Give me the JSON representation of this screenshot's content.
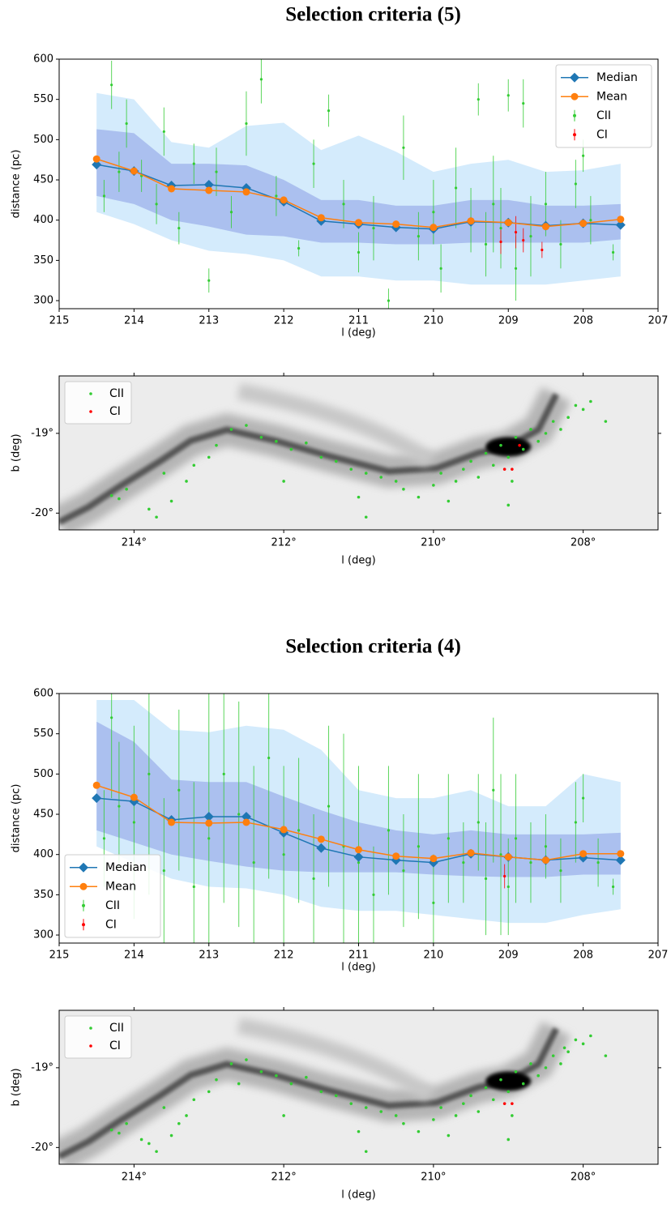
{
  "chart_data": [
    {
      "type": "line",
      "title": "Selection criteria (5)",
      "xlabel": "l (deg)",
      "ylabel": "distance (pc)",
      "xlim": [
        215,
        207
      ],
      "ylim": [
        290,
        600
      ],
      "xticks": [
        215,
        214,
        213,
        212,
        211,
        210,
        209,
        208,
        207
      ],
      "yticks": [
        300,
        350,
        400,
        450,
        500,
        550,
        600
      ],
      "legend": "upper right",
      "x": [
        214.5,
        214,
        213.5,
        213,
        212.5,
        212,
        211.5,
        211,
        210.5,
        210,
        209.5,
        209,
        208.5,
        208,
        207.5
      ],
      "bands": [
        {
          "color": "#cde8fb",
          "upper": [
            558,
            550,
            497,
            490,
            517,
            521,
            487,
            505,
            485,
            460,
            470,
            475,
            460,
            462,
            470
          ],
          "lower": [
            410,
            395,
            375,
            362,
            358,
            350,
            330,
            330,
            325,
            325,
            320,
            320,
            320,
            325,
            330
          ]
        },
        {
          "color": "#a3b8ec",
          "upper": [
            513,
            508,
            470,
            470,
            468,
            450,
            425,
            425,
            418,
            418,
            425,
            425,
            418,
            418,
            420
          ],
          "lower": [
            430,
            420,
            400,
            392,
            382,
            380,
            372,
            372,
            370,
            370,
            372,
            372,
            372,
            372,
            376
          ]
        }
      ],
      "series": [
        {
          "name": "Median",
          "color": "#1f77b4",
          "marker": "diamond",
          "values": [
            469,
            461,
            443,
            444,
            440,
            423,
            399,
            395,
            391,
            389,
            398,
            397,
            393,
            396,
            394
          ]
        },
        {
          "name": "Mean",
          "color": "#ff7f0e",
          "marker": "circle",
          "values": [
            476,
            461,
            439,
            437,
            435,
            425,
            403,
            397,
            395,
            391,
            399,
            397,
            392,
            396,
            401
          ]
        }
      ],
      "points": [
        {
          "name": "CII",
          "color": "#33cc33",
          "x": [
            214.4,
            214.3,
            214.2,
            214.1,
            213.9,
            213.7,
            213.6,
            213.4,
            213.2,
            213.0,
            212.9,
            212.7,
            212.5,
            212.3,
            212.1,
            211.8,
            211.6,
            211.4,
            211.2,
            211.0,
            210.8,
            210.6,
            210.4,
            210.2,
            210.0,
            209.9,
            209.7,
            209.5,
            209.4,
            209.3,
            209.2,
            209.1,
            209.0,
            208.9,
            208.8,
            208.7,
            208.5,
            208.3,
            208.1,
            208.0,
            207.9,
            207.6
          ],
          "values": [
            430,
            568,
            460,
            520,
            455,
            420,
            510,
            390,
            470,
            325,
            460,
            410,
            520,
            575,
            430,
            365,
            470,
            536,
            420,
            360,
            390,
            300,
            490,
            380,
            410,
            340,
            440,
            400,
            550,
            370,
            420,
            390,
            555,
            340,
            545,
            380,
            420,
            370,
            445,
            480,
            400,
            360
          ],
          "errors": [
            20,
            30,
            25,
            30,
            20,
            25,
            30,
            20,
            25,
            15,
            30,
            20,
            40,
            30,
            25,
            10,
            30,
            20,
            30,
            25,
            40,
            15,
            40,
            30,
            40,
            30,
            50,
            40,
            20,
            40,
            60,
            50,
            20,
            40,
            30,
            50,
            40,
            30,
            30,
            20,
            30,
            10
          ]
        },
        {
          "name": "CI",
          "color": "#ff0000",
          "x": [
            209.1,
            208.9,
            208.8,
            208.55
          ],
          "values": [
            373,
            385,
            375,
            363
          ],
          "errors": [
            15,
            20,
            15,
            10
          ]
        }
      ]
    },
    {
      "type": "scatter",
      "xlabel": "l (deg)",
      "ylabel": "b (deg)",
      "xlim": [
        215,
        207
      ],
      "ylim": [
        -20.21,
        -18.28
      ],
      "xticks": [
        {
          "value": 214,
          "label": "214°"
        },
        {
          "value": 212,
          "label": "212°"
        },
        {
          "value": 210,
          "label": "210°"
        },
        {
          "value": 208,
          "label": "208°"
        }
      ],
      "yticks": [
        {
          "value": -20,
          "label": "-20°"
        },
        {
          "value": -19,
          "label": "-19°"
        }
      ],
      "legend": "upper left",
      "series": [
        {
          "name": "CII",
          "color": "#33cc33",
          "x": [
            214.3,
            214.2,
            214.1,
            213.8,
            213.6,
            213.5,
            213.3,
            213.2,
            213.0,
            212.9,
            212.7,
            212.5,
            212.3,
            212.1,
            211.9,
            211.7,
            211.5,
            211.3,
            211.1,
            210.9,
            210.7,
            210.5,
            210.4,
            210.2,
            210.0,
            209.9,
            209.8,
            209.7,
            209.6,
            209.5,
            209.4,
            209.3,
            209.2,
            209.1,
            209.0,
            208.95,
            208.9,
            208.8,
            208.7,
            208.6,
            208.5,
            208.4,
            208.3,
            208.2,
            208.1,
            208.0,
            207.9,
            207.7,
            209.0,
            210.9,
            213.7,
            212.0,
            211.0
          ],
          "values": [
            -19.78,
            -19.82,
            -19.7,
            -19.95,
            -19.5,
            -19.85,
            -19.6,
            -19.4,
            -19.3,
            -19.15,
            -18.95,
            -18.9,
            -19.05,
            -19.1,
            -19.2,
            -19.12,
            -19.3,
            -19.35,
            -19.45,
            -19.5,
            -19.55,
            -19.6,
            -19.7,
            -19.8,
            -19.65,
            -19.5,
            -19.85,
            -19.6,
            -19.45,
            -19.35,
            -19.55,
            -19.25,
            -19.4,
            -19.15,
            -19.3,
            -19.6,
            -19.05,
            -19.2,
            -18.95,
            -19.1,
            -19.0,
            -18.85,
            -18.95,
            -18.8,
            -18.65,
            -18.7,
            -18.6,
            -18.85,
            -19.9,
            -20.05,
            -20.05,
            -19.6,
            -19.8
          ]
        },
        {
          "name": "CI",
          "color": "#ff0000",
          "x": [
            209.05,
            208.95,
            208.85
          ],
          "values": [
            -19.45,
            -19.45,
            -19.15
          ]
        }
      ]
    },
    {
      "type": "line",
      "title": "Selection criteria (4)",
      "xlabel": "l (deg)",
      "ylabel": "distance (pc)",
      "xlim": [
        215,
        207
      ],
      "ylim": [
        290,
        600
      ],
      "xticks": [
        215,
        214,
        213,
        212,
        211,
        210,
        209,
        208,
        207
      ],
      "yticks": [
        300,
        350,
        400,
        450,
        500,
        550,
        600
      ],
      "legend": "lower left",
      "x": [
        214.5,
        214,
        213.5,
        213,
        212.5,
        212,
        211.5,
        211,
        210.5,
        210,
        209.5,
        209,
        208.5,
        208,
        207.5
      ],
      "bands": [
        {
          "color": "#cde8fb",
          "upper": [
            592,
            592,
            555,
            552,
            560,
            555,
            530,
            480,
            470,
            470,
            480,
            460,
            460,
            500,
            490
          ],
          "lower": [
            410,
            390,
            370,
            360,
            358,
            350,
            335,
            330,
            330,
            325,
            320,
            315,
            315,
            325,
            332
          ]
        },
        {
          "color": "#a3b8ec",
          "upper": [
            565,
            540,
            493,
            490,
            490,
            472,
            455,
            440,
            430,
            425,
            430,
            425,
            425,
            425,
            427
          ],
          "lower": [
            430,
            415,
            400,
            392,
            385,
            380,
            378,
            378,
            378,
            375,
            373,
            372,
            372,
            375,
            375
          ]
        }
      ],
      "series": [
        {
          "name": "Median",
          "color": "#1f77b4",
          "marker": "diamond",
          "values": [
            470,
            466,
            443,
            447,
            447,
            427,
            408,
            397,
            393,
            390,
            401,
            397,
            393,
            396,
            393
          ]
        },
        {
          "name": "Mean",
          "color": "#ff7f0e",
          "marker": "circle",
          "values": [
            486,
            471,
            440,
            439,
            440,
            431,
            419,
            406,
            398,
            395,
            402,
            397,
            393,
            401,
            401
          ]
        }
      ],
      "points": [
        {
          "name": "CII",
          "color": "#33cc33",
          "x": [
            214.4,
            214.3,
            214.2,
            214.0,
            213.8,
            213.6,
            213.4,
            213.2,
            213.0,
            212.8,
            212.6,
            212.4,
            212.2,
            212.0,
            211.8,
            211.6,
            211.4,
            211.2,
            211.0,
            210.8,
            210.6,
            210.4,
            210.2,
            210.0,
            209.8,
            209.6,
            209.4,
            209.3,
            209.2,
            209.1,
            209.0,
            208.9,
            208.7,
            208.5,
            208.3,
            208.1,
            208.0,
            207.8,
            207.6
          ],
          "values": [
            420,
            570,
            460,
            440,
            500,
            380,
            480,
            360,
            420,
            500,
            450,
            390,
            520,
            400,
            430,
            370,
            460,
            410,
            390,
            350,
            430,
            380,
            410,
            340,
            420,
            390,
            440,
            370,
            480,
            400,
            360,
            420,
            390,
            410,
            380,
            440,
            470,
            390,
            360
          ],
          "errors": [
            60,
            100,
            80,
            120,
            150,
            90,
            100,
            130,
            200,
            160,
            140,
            120,
            150,
            110,
            90,
            80,
            100,
            140,
            120,
            60,
            80,
            70,
            90,
            60,
            80,
            50,
            60,
            70,
            90,
            100,
            60,
            80,
            50,
            40,
            40,
            50,
            30,
            30,
            10
          ]
        },
        {
          "name": "CI",
          "color": "#ff0000",
          "x": [
            209.05
          ],
          "values": [
            373
          ],
          "errors": [
            15
          ]
        }
      ]
    },
    {
      "type": "scatter",
      "xlabel": "l (deg)",
      "ylabel": "b (deg)",
      "xlim": [
        215,
        207
      ],
      "ylim": [
        -20.21,
        -18.28
      ],
      "xticks": [
        {
          "value": 214,
          "label": "214°"
        },
        {
          "value": 212,
          "label": "212°"
        },
        {
          "value": 210,
          "label": "210°"
        },
        {
          "value": 208,
          "label": "208°"
        }
      ],
      "yticks": [
        {
          "value": -20,
          "label": "-20°"
        },
        {
          "value": -19,
          "label": "-19°"
        }
      ],
      "legend": "upper left",
      "series": [
        {
          "name": "CII",
          "color": "#33cc33",
          "x": [
            214.3,
            214.2,
            214.1,
            213.8,
            213.6,
            213.5,
            213.3,
            213.2,
            213.0,
            212.9,
            212.7,
            212.5,
            212.3,
            212.1,
            211.9,
            211.7,
            211.5,
            211.3,
            211.1,
            210.9,
            210.7,
            210.5,
            210.4,
            210.2,
            210.0,
            209.9,
            209.8,
            209.7,
            209.6,
            209.5,
            209.4,
            209.3,
            209.2,
            209.1,
            209.0,
            208.95,
            208.9,
            208.8,
            208.7,
            208.6,
            208.5,
            208.4,
            208.3,
            208.2,
            208.1,
            208.0,
            207.9,
            207.7,
            209.0,
            210.9,
            213.7,
            212.0,
            211.0,
            213.9,
            213.4,
            212.6,
            208.25
          ],
          "values": [
            -19.78,
            -19.82,
            -19.7,
            -19.95,
            -19.5,
            -19.85,
            -19.6,
            -19.4,
            -19.3,
            -19.15,
            -18.95,
            -18.9,
            -19.05,
            -19.1,
            -19.2,
            -19.12,
            -19.3,
            -19.35,
            -19.45,
            -19.5,
            -19.55,
            -19.6,
            -19.7,
            -19.8,
            -19.65,
            -19.5,
            -19.85,
            -19.6,
            -19.45,
            -19.35,
            -19.55,
            -19.25,
            -19.4,
            -19.15,
            -19.3,
            -19.6,
            -19.05,
            -19.2,
            -18.95,
            -19.1,
            -19.0,
            -18.85,
            -18.95,
            -18.8,
            -18.65,
            -18.7,
            -18.6,
            -18.85,
            -19.9,
            -20.05,
            -20.05,
            -19.6,
            -19.8,
            -19.9,
            -19.7,
            -19.2,
            -18.75
          ]
        },
        {
          "name": "CI",
          "color": "#ff0000",
          "x": [
            209.05,
            208.95
          ],
          "values": [
            -19.45,
            -19.45
          ]
        }
      ]
    }
  ]
}
